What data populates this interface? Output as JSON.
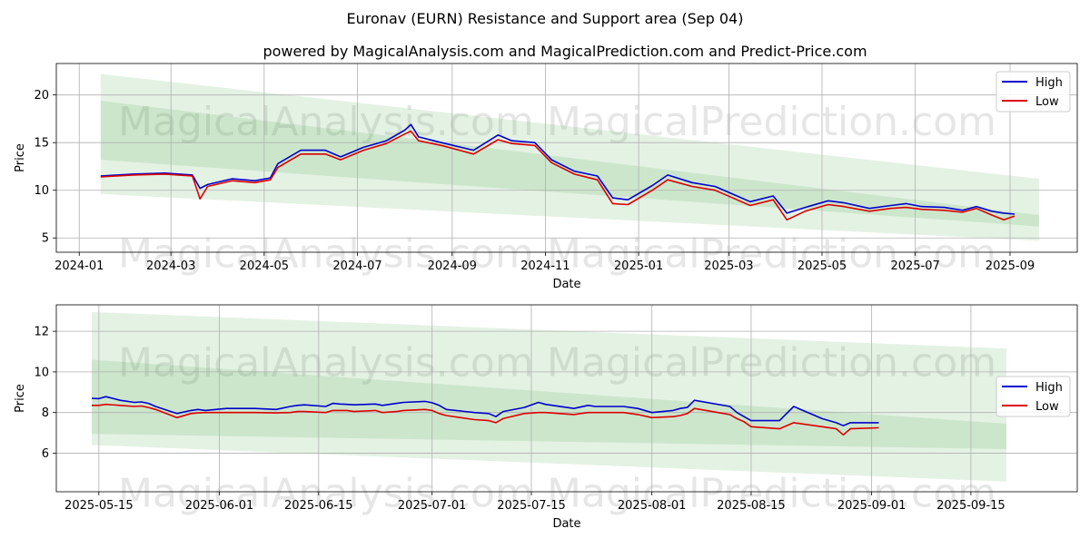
{
  "title": "Euronav (EURN) Resistance and Support area (Sep 04)",
  "subtitle": "powered by MagicalAnalysis.com and MagicalPrediction.com and Predict-Price.com",
  "watermarks": [
    "MagicalAnalysis.com",
    "MagicalPrediction.com"
  ],
  "colors": {
    "high": "#0000cc",
    "low": "#dd0000",
    "band": "#2e9b2e",
    "grid": "#b0b0b0"
  },
  "chart_data": [
    {
      "type": "line",
      "xlabel": "Date",
      "ylabel": "Price",
      "xticks": [
        "2024-01",
        "2024-03",
        "2024-05",
        "2024-07",
        "2024-09",
        "2024-11",
        "2025-01",
        "2025-03",
        "2025-05",
        "2025-07",
        "2025-09"
      ],
      "yticks": [
        5,
        10,
        15,
        20
      ],
      "xlim": [
        "2023-12-17",
        "2025-10-15"
      ],
      "ylim": [
        3.5,
        23.3
      ],
      "grid": true,
      "legend": "top-right",
      "bands": [
        {
          "x": [
            "2024-01-15",
            "2025-09-20"
          ],
          "upper": [
            22.2,
            11.2
          ],
          "lower": [
            9.6,
            4.7
          ]
        },
        {
          "x": [
            "2024-01-15",
            "2025-09-20"
          ],
          "upper": [
            19.4,
            7.4
          ],
          "lower": [
            13.2,
            6.2
          ]
        }
      ],
      "series": [
        {
          "name": "High",
          "x": [
            "2024-01-15",
            "2024-02-05",
            "2024-02-26",
            "2024-03-15",
            "2024-03-20",
            "2024-03-25",
            "2024-04-10",
            "2024-04-25",
            "2024-05-05",
            "2024-05-10",
            "2024-05-25",
            "2024-06-10",
            "2024-06-20",
            "2024-07-05",
            "2024-07-20",
            "2024-08-01",
            "2024-08-05",
            "2024-08-10",
            "2024-08-25",
            "2024-09-15",
            "2024-10-01",
            "2024-10-10",
            "2024-10-25",
            "2024-11-05",
            "2024-11-20",
            "2024-12-05",
            "2024-12-15",
            "2024-12-25",
            "2025-01-10",
            "2025-01-20",
            "2025-02-05",
            "2025-02-20",
            "2025-03-05",
            "2025-03-15",
            "2025-03-30",
            "2025-04-08",
            "2025-04-20",
            "2025-05-05",
            "2025-05-15",
            "2025-06-01",
            "2025-06-15",
            "2025-06-25",
            "2025-07-05",
            "2025-07-20",
            "2025-08-01",
            "2025-08-10",
            "2025-08-20",
            "2025-08-28",
            "2025-09-04"
          ],
          "values": [
            11.5,
            11.7,
            11.8,
            11.6,
            10.2,
            10.6,
            11.2,
            11.0,
            11.3,
            12.8,
            14.2,
            14.2,
            13.5,
            14.5,
            15.2,
            16.3,
            16.9,
            15.6,
            15.0,
            14.2,
            15.8,
            15.2,
            15.0,
            13.2,
            12.0,
            11.5,
            9.2,
            9.0,
            10.5,
            11.6,
            10.8,
            10.4,
            9.5,
            8.8,
            9.4,
            7.6,
            8.2,
            8.9,
            8.7,
            8.1,
            8.4,
            8.6,
            8.3,
            8.2,
            7.9,
            8.3,
            7.8,
            7.6,
            7.5
          ]
        },
        {
          "name": "Low",
          "x": [
            "2024-01-15",
            "2024-02-05",
            "2024-02-26",
            "2024-03-15",
            "2024-03-20",
            "2024-03-25",
            "2024-04-10",
            "2024-04-25",
            "2024-05-05",
            "2024-05-10",
            "2024-05-25",
            "2024-06-10",
            "2024-06-20",
            "2024-07-05",
            "2024-07-20",
            "2024-08-01",
            "2024-08-05",
            "2024-08-10",
            "2024-08-25",
            "2024-09-15",
            "2024-10-01",
            "2024-10-10",
            "2024-10-25",
            "2024-11-05",
            "2024-11-20",
            "2024-12-05",
            "2024-12-15",
            "2024-12-25",
            "2025-01-10",
            "2025-01-20",
            "2025-02-05",
            "2025-02-20",
            "2025-03-05",
            "2025-03-15",
            "2025-03-30",
            "2025-04-08",
            "2025-04-20",
            "2025-05-05",
            "2025-05-15",
            "2025-06-01",
            "2025-06-15",
            "2025-06-25",
            "2025-07-05",
            "2025-07-20",
            "2025-08-01",
            "2025-08-10",
            "2025-08-20",
            "2025-08-28",
            "2025-09-04"
          ],
          "values": [
            11.4,
            11.6,
            11.7,
            11.5,
            9.1,
            10.4,
            11.0,
            10.8,
            11.1,
            12.4,
            13.8,
            13.8,
            13.2,
            14.2,
            14.9,
            15.9,
            16.2,
            15.2,
            14.7,
            13.8,
            15.3,
            14.9,
            14.7,
            12.9,
            11.7,
            11.1,
            8.6,
            8.5,
            10.0,
            11.1,
            10.4,
            10.0,
            9.1,
            8.4,
            9.0,
            6.9,
            7.8,
            8.5,
            8.3,
            7.8,
            8.1,
            8.2,
            8.0,
            7.9,
            7.7,
            8.1,
            7.4,
            6.9,
            7.3
          ]
        }
      ]
    },
    {
      "type": "line",
      "xlabel": "Date",
      "ylabel": "Price",
      "xticks": [
        "2025-05-15",
        "2025-06-01",
        "2025-06-15",
        "2025-07-01",
        "2025-07-15",
        "2025-08-01",
        "2025-08-15",
        "2025-09-01",
        "2025-09-15"
      ],
      "yticks": [
        6,
        8,
        10,
        12
      ],
      "xlim": [
        "2025-05-09",
        "2025-09-30"
      ],
      "ylim": [
        4.1,
        13.3
      ],
      "grid": true,
      "legend": "center-right",
      "bands": [
        {
          "x": [
            "2025-05-14",
            "2025-09-20"
          ],
          "upper": [
            12.95,
            11.15
          ],
          "lower": [
            6.4,
            4.6
          ]
        },
        {
          "x": [
            "2025-05-14",
            "2025-09-20"
          ],
          "upper": [
            10.6,
            7.45
          ],
          "lower": [
            6.95,
            6.2
          ]
        }
      ],
      "series": [
        {
          "name": "High",
          "x": [
            "2025-05-14",
            "2025-05-15",
            "2025-05-16",
            "2025-05-18",
            "2025-05-20",
            "2025-05-21",
            "2025-05-22",
            "2025-05-23",
            "2025-05-26",
            "2025-05-28",
            "2025-05-29",
            "2025-05-30",
            "2025-06-02",
            "2025-06-04",
            "2025-06-06",
            "2025-06-09",
            "2025-06-11",
            "2025-06-12",
            "2025-06-13",
            "2025-06-16",
            "2025-06-17",
            "2025-06-18",
            "2025-06-19",
            "2025-06-20",
            "2025-06-23",
            "2025-06-24",
            "2025-06-26",
            "2025-06-27",
            "2025-06-30",
            "2025-07-01",
            "2025-07-02",
            "2025-07-03",
            "2025-07-07",
            "2025-07-09",
            "2025-07-10",
            "2025-07-11",
            "2025-07-14",
            "2025-07-16",
            "2025-07-17",
            "2025-07-21",
            "2025-07-23",
            "2025-07-24",
            "2025-07-28",
            "2025-07-30",
            "2025-08-01",
            "2025-08-04",
            "2025-08-05",
            "2025-08-06",
            "2025-08-07",
            "2025-08-12",
            "2025-08-13",
            "2025-08-14",
            "2025-08-15",
            "2025-08-19",
            "2025-08-21",
            "2025-08-25",
            "2025-08-27",
            "2025-08-28",
            "2025-08-29",
            "2025-09-02"
          ],
          "values": [
            8.7,
            8.68,
            8.78,
            8.6,
            8.5,
            8.52,
            8.45,
            8.3,
            7.95,
            8.1,
            8.15,
            8.1,
            8.2,
            8.2,
            8.2,
            8.15,
            8.3,
            8.35,
            8.38,
            8.3,
            8.45,
            8.42,
            8.4,
            8.38,
            8.42,
            8.35,
            8.45,
            8.5,
            8.55,
            8.48,
            8.35,
            8.15,
            8.0,
            7.95,
            7.8,
            8.05,
            8.25,
            8.5,
            8.4,
            8.2,
            8.35,
            8.3,
            8.3,
            8.2,
            8.0,
            8.1,
            8.2,
            8.25,
            8.6,
            8.3,
            8.0,
            7.8,
            7.6,
            7.6,
            8.3,
            7.7,
            7.5,
            7.35,
            7.5,
            7.5
          ]
        },
        {
          "name": "Low",
          "x": [
            "2025-05-14",
            "2025-05-15",
            "2025-05-16",
            "2025-05-18",
            "2025-05-20",
            "2025-05-21",
            "2025-05-22",
            "2025-05-23",
            "2025-05-26",
            "2025-05-28",
            "2025-05-29",
            "2025-05-30",
            "2025-06-02",
            "2025-06-04",
            "2025-06-06",
            "2025-06-09",
            "2025-06-11",
            "2025-06-12",
            "2025-06-13",
            "2025-06-16",
            "2025-06-17",
            "2025-06-18",
            "2025-06-19",
            "2025-06-20",
            "2025-06-23",
            "2025-06-24",
            "2025-06-26",
            "2025-06-27",
            "2025-06-30",
            "2025-07-01",
            "2025-07-02",
            "2025-07-03",
            "2025-07-07",
            "2025-07-09",
            "2025-07-10",
            "2025-07-11",
            "2025-07-14",
            "2025-07-16",
            "2025-07-17",
            "2025-07-21",
            "2025-07-23",
            "2025-07-24",
            "2025-07-28",
            "2025-07-30",
            "2025-08-01",
            "2025-08-04",
            "2025-08-05",
            "2025-08-06",
            "2025-08-07",
            "2025-08-12",
            "2025-08-13",
            "2025-08-14",
            "2025-08-15",
            "2025-08-19",
            "2025-08-21",
            "2025-08-25",
            "2025-08-27",
            "2025-08-28",
            "2025-08-29",
            "2025-09-02"
          ],
          "values": [
            8.35,
            8.35,
            8.4,
            8.35,
            8.3,
            8.32,
            8.25,
            8.15,
            7.75,
            7.95,
            7.98,
            8.0,
            8.0,
            8.0,
            8.0,
            7.98,
            8.0,
            8.05,
            8.05,
            8.0,
            8.1,
            8.1,
            8.1,
            8.05,
            8.1,
            8.0,
            8.05,
            8.1,
            8.15,
            8.1,
            7.95,
            7.85,
            7.65,
            7.6,
            7.5,
            7.7,
            7.95,
            8.0,
            8.0,
            7.9,
            8.0,
            8.0,
            8.0,
            7.9,
            7.75,
            7.8,
            7.85,
            7.95,
            8.2,
            7.9,
            7.7,
            7.55,
            7.3,
            7.2,
            7.5,
            7.3,
            7.2,
            6.9,
            7.2,
            7.25
          ]
        }
      ]
    }
  ]
}
